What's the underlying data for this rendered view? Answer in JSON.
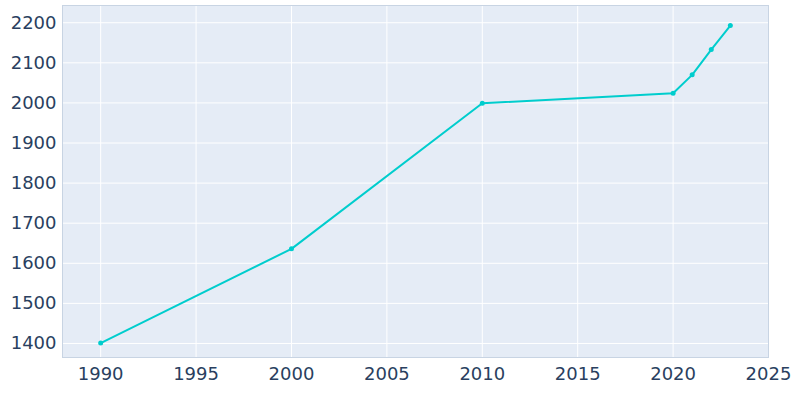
{
  "chart_data": {
    "type": "line",
    "x": [
      1990,
      2000,
      2010,
      2020,
      2021,
      2022,
      2023
    ],
    "values": [
      1401,
      1636,
      1999,
      2024,
      2070,
      2133,
      2193
    ],
    "color": "#00cdcd",
    "marker": "circle",
    "xlim": [
      1988,
      2025
    ],
    "xticks": [
      1990,
      1995,
      2000,
      2005,
      2010,
      2015,
      2020,
      2025
    ],
    "ylim": [
      1365,
      2243
    ],
    "yticks": [
      1400,
      1500,
      1600,
      1700,
      1800,
      1900,
      2000,
      2100,
      2200
    ],
    "grid": true
  }
}
